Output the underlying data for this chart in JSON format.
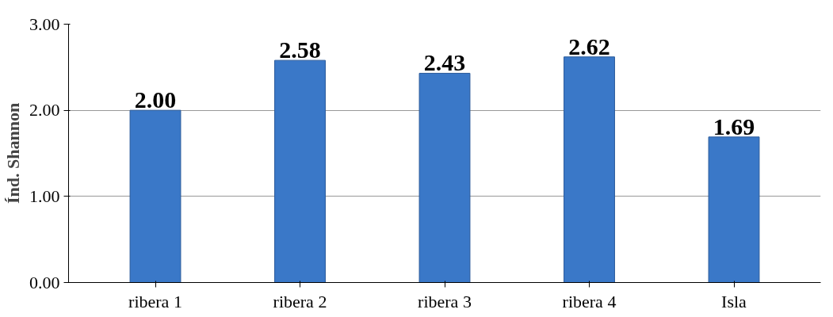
{
  "chart_data": {
    "type": "bar",
    "ylabel": "Índ. Shannon",
    "categories": [
      "ribera 1",
      "ribera 2",
      "ribera 3",
      "ribera 4",
      "Isla"
    ],
    "values": [
      2.0,
      2.58,
      2.43,
      2.62,
      1.69
    ],
    "color": "#3a78c8",
    "ylim": [
      0,
      3
    ],
    "yticks": [
      {
        "value": 0,
        "label": "0.00"
      },
      {
        "value": 1,
        "label": "1.00"
      },
      {
        "value": 2,
        "label": "2.00"
      },
      {
        "value": 3,
        "label": "3.00"
      }
    ],
    "grid": "y",
    "value_labels": [
      "2.00",
      "2.58",
      "2.43",
      "2.62",
      "1.69"
    ]
  }
}
